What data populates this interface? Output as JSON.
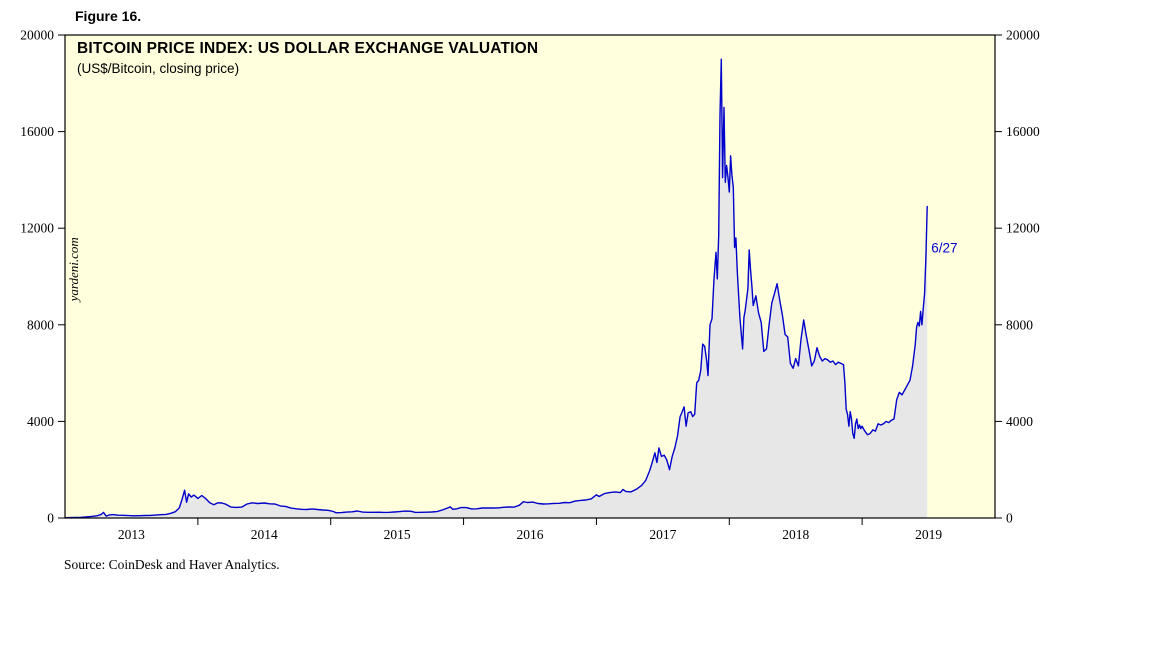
{
  "figure_label": "Figure 16.",
  "source": "Source: CoinDesk and Haver Analytics.",
  "chart_data": {
    "type": "line",
    "title": "BITCOIN PRICE INDEX: US DOLLAR EXCHANGE VALUATION",
    "subtitle": "(US$/Bitcoin, closing price)",
    "watermark": "yardeni.com",
    "annotation": {
      "label": "6/27",
      "x": 2019.52,
      "y": 11000
    },
    "xlim": [
      2013,
      2020
    ],
    "ylim": [
      0,
      20000
    ],
    "grid": false,
    "yticks": [
      0,
      4000,
      8000,
      12000,
      16000,
      20000
    ],
    "xticks": [
      {
        "label": "2013",
        "x": 2013.5
      },
      {
        "label": "2014",
        "x": 2014.5
      },
      {
        "label": "2015",
        "x": 2015.5
      },
      {
        "label": "2016",
        "x": 2016.5
      },
      {
        "label": "2017",
        "x": 2017.5
      },
      {
        "label": "2018",
        "x": 2018.5
      },
      {
        "label": "2019",
        "x": 2019.5
      }
    ],
    "xtick_boundaries": [
      2014,
      2015,
      2016,
      2017,
      2018,
      2019
    ],
    "colors": {
      "line": "#0000CC",
      "area_fill": "#E7E7E7",
      "plot_bg": "#FFFFDE",
      "axis": "#000000",
      "annotation": "#0000CC"
    },
    "series": [
      {
        "name": "Bitcoin price (US$/Bitcoin, closing price)",
        "points": [
          [
            2013.0,
            13
          ],
          [
            2013.04,
            15
          ],
          [
            2013.08,
            20
          ],
          [
            2013.12,
            30
          ],
          [
            2013.16,
            47
          ],
          [
            2013.2,
            65
          ],
          [
            2013.24,
            90
          ],
          [
            2013.27,
            140
          ],
          [
            2013.29,
            230
          ],
          [
            2013.31,
            77
          ],
          [
            2013.33,
            120
          ],
          [
            2013.36,
            140
          ],
          [
            2013.4,
            117
          ],
          [
            2013.44,
            110
          ],
          [
            2013.48,
            100
          ],
          [
            2013.52,
            90
          ],
          [
            2013.56,
            97
          ],
          [
            2013.6,
            105
          ],
          [
            2013.64,
            108
          ],
          [
            2013.68,
            120
          ],
          [
            2013.72,
            135
          ],
          [
            2013.76,
            150
          ],
          [
            2013.8,
            200
          ],
          [
            2013.83,
            260
          ],
          [
            2013.86,
            420
          ],
          [
            2013.88,
            750
          ],
          [
            2013.9,
            1150
          ],
          [
            2013.915,
            650
          ],
          [
            2013.93,
            1000
          ],
          [
            2013.95,
            870
          ],
          [
            2013.97,
            950
          ],
          [
            2014.0,
            810
          ],
          [
            2014.03,
            930
          ],
          [
            2014.06,
            800
          ],
          [
            2014.09,
            630
          ],
          [
            2014.12,
            550
          ],
          [
            2014.15,
            630
          ],
          [
            2014.18,
            620
          ],
          [
            2014.21,
            570
          ],
          [
            2014.25,
            450
          ],
          [
            2014.29,
            440
          ],
          [
            2014.33,
            450
          ],
          [
            2014.37,
            580
          ],
          [
            2014.41,
            630
          ],
          [
            2014.45,
            600
          ],
          [
            2014.5,
            620
          ],
          [
            2014.54,
            590
          ],
          [
            2014.58,
            580
          ],
          [
            2014.62,
            500
          ],
          [
            2014.66,
            480
          ],
          [
            2014.7,
            410
          ],
          [
            2014.74,
            380
          ],
          [
            2014.78,
            360
          ],
          [
            2014.82,
            350
          ],
          [
            2014.86,
            375
          ],
          [
            2014.9,
            350
          ],
          [
            2014.94,
            330
          ],
          [
            2014.98,
            320
          ],
          [
            2015.02,
            270
          ],
          [
            2015.04,
            215
          ],
          [
            2015.08,
            225
          ],
          [
            2015.12,
            245
          ],
          [
            2015.16,
            255
          ],
          [
            2015.2,
            290
          ],
          [
            2015.24,
            245
          ],
          [
            2015.28,
            235
          ],
          [
            2015.32,
            235
          ],
          [
            2015.36,
            240
          ],
          [
            2015.4,
            230
          ],
          [
            2015.44,
            235
          ],
          [
            2015.48,
            250
          ],
          [
            2015.52,
            265
          ],
          [
            2015.56,
            285
          ],
          [
            2015.6,
            280
          ],
          [
            2015.64,
            230
          ],
          [
            2015.68,
            235
          ],
          [
            2015.72,
            240
          ],
          [
            2015.76,
            250
          ],
          [
            2015.8,
            265
          ],
          [
            2015.84,
            330
          ],
          [
            2015.87,
            395
          ],
          [
            2015.9,
            460
          ],
          [
            2015.92,
            360
          ],
          [
            2015.95,
            380
          ],
          [
            2015.98,
            430
          ],
          [
            2016.02,
            430
          ],
          [
            2016.06,
            375
          ],
          [
            2016.1,
            380
          ],
          [
            2016.14,
            415
          ],
          [
            2016.18,
            420
          ],
          [
            2016.22,
            415
          ],
          [
            2016.26,
            420
          ],
          [
            2016.3,
            445
          ],
          [
            2016.34,
            455
          ],
          [
            2016.38,
            450
          ],
          [
            2016.42,
            530
          ],
          [
            2016.45,
            675
          ],
          [
            2016.48,
            640
          ],
          [
            2016.52,
            660
          ],
          [
            2016.56,
            600
          ],
          [
            2016.6,
            580
          ],
          [
            2016.64,
            590
          ],
          [
            2016.68,
            605
          ],
          [
            2016.72,
            610
          ],
          [
            2016.76,
            640
          ],
          [
            2016.8,
            635
          ],
          [
            2016.84,
            700
          ],
          [
            2016.88,
            730
          ],
          [
            2016.92,
            745
          ],
          [
            2016.96,
            790
          ],
          [
            2017.0,
            960
          ],
          [
            2017.02,
            890
          ],
          [
            2017.06,
            1010
          ],
          [
            2017.1,
            1050
          ],
          [
            2017.14,
            1080
          ],
          [
            2017.18,
            1050
          ],
          [
            2017.2,
            1180
          ],
          [
            2017.22,
            1100
          ],
          [
            2017.26,
            1080
          ],
          [
            2017.3,
            1190
          ],
          [
            2017.34,
            1350
          ],
          [
            2017.37,
            1550
          ],
          [
            2017.4,
            1950
          ],
          [
            2017.42,
            2300
          ],
          [
            2017.44,
            2700
          ],
          [
            2017.455,
            2300
          ],
          [
            2017.47,
            2900
          ],
          [
            2017.49,
            2550
          ],
          [
            2017.51,
            2600
          ],
          [
            2017.53,
            2400
          ],
          [
            2017.55,
            2000
          ],
          [
            2017.57,
            2550
          ],
          [
            2017.59,
            2900
          ],
          [
            2017.61,
            3400
          ],
          [
            2017.63,
            4200
          ],
          [
            2017.645,
            4390
          ],
          [
            2017.66,
            4600
          ],
          [
            2017.675,
            3800
          ],
          [
            2017.69,
            4350
          ],
          [
            2017.71,
            4400
          ],
          [
            2017.725,
            4200
          ],
          [
            2017.74,
            4300
          ],
          [
            2017.755,
            5600
          ],
          [
            2017.77,
            5700
          ],
          [
            2017.785,
            6100
          ],
          [
            2017.8,
            7200
          ],
          [
            2017.815,
            7100
          ],
          [
            2017.83,
            6500
          ],
          [
            2017.84,
            5900
          ],
          [
            2017.855,
            8000
          ],
          [
            2017.87,
            8250
          ],
          [
            2017.885,
            9900
          ],
          [
            2017.9,
            11000
          ],
          [
            2017.91,
            9900
          ],
          [
            2017.92,
            11700
          ],
          [
            2017.93,
            16700
          ],
          [
            2017.94,
            19000
          ],
          [
            2017.95,
            14100
          ],
          [
            2017.96,
            17000
          ],
          [
            2017.97,
            13900
          ],
          [
            2017.98,
            14600
          ],
          [
            2017.99,
            14100
          ],
          [
            2018.0,
            13500
          ],
          [
            2018.01,
            15000
          ],
          [
            2018.02,
            14200
          ],
          [
            2018.03,
            13700
          ],
          [
            2018.04,
            11200
          ],
          [
            2018.05,
            11600
          ],
          [
            2018.06,
            10200
          ],
          [
            2018.08,
            8300
          ],
          [
            2018.1,
            7000
          ],
          [
            2018.11,
            8300
          ],
          [
            2018.12,
            8600
          ],
          [
            2018.14,
            9500
          ],
          [
            2018.15,
            11100
          ],
          [
            2018.16,
            10300
          ],
          [
            2018.17,
            9600
          ],
          [
            2018.18,
            8800
          ],
          [
            2018.2,
            9200
          ],
          [
            2018.22,
            8500
          ],
          [
            2018.24,
            8100
          ],
          [
            2018.26,
            6900
          ],
          [
            2018.28,
            7000
          ],
          [
            2018.3,
            8000
          ],
          [
            2018.32,
            8900
          ],
          [
            2018.34,
            9300
          ],
          [
            2018.36,
            9700
          ],
          [
            2018.38,
            9000
          ],
          [
            2018.4,
            8400
          ],
          [
            2018.42,
            7600
          ],
          [
            2018.44,
            7500
          ],
          [
            2018.46,
            6400
          ],
          [
            2018.48,
            6200
          ],
          [
            2018.5,
            6600
          ],
          [
            2018.52,
            6300
          ],
          [
            2018.54,
            7400
          ],
          [
            2018.56,
            8200
          ],
          [
            2018.58,
            7550
          ],
          [
            2018.6,
            6950
          ],
          [
            2018.62,
            6300
          ],
          [
            2018.64,
            6500
          ],
          [
            2018.66,
            7050
          ],
          [
            2018.68,
            6700
          ],
          [
            2018.7,
            6500
          ],
          [
            2018.72,
            6600
          ],
          [
            2018.74,
            6550
          ],
          [
            2018.76,
            6450
          ],
          [
            2018.78,
            6500
          ],
          [
            2018.8,
            6350
          ],
          [
            2018.82,
            6450
          ],
          [
            2018.84,
            6400
          ],
          [
            2018.86,
            6350
          ],
          [
            2018.87,
            5600
          ],
          [
            2018.88,
            4500
          ],
          [
            2018.89,
            4300
          ],
          [
            2018.9,
            3800
          ],
          [
            2018.91,
            4400
          ],
          [
            2018.92,
            4100
          ],
          [
            2018.93,
            3500
          ],
          [
            2018.94,
            3300
          ],
          [
            2018.95,
            3900
          ],
          [
            2018.96,
            4100
          ],
          [
            2018.97,
            3700
          ],
          [
            2018.98,
            3850
          ],
          [
            2018.99,
            3700
          ],
          [
            2019.0,
            3800
          ],
          [
            2019.02,
            3600
          ],
          [
            2019.04,
            3450
          ],
          [
            2019.06,
            3500
          ],
          [
            2019.08,
            3650
          ],
          [
            2019.1,
            3600
          ],
          [
            2019.12,
            3900
          ],
          [
            2019.14,
            3850
          ],
          [
            2019.16,
            3900
          ],
          [
            2019.18,
            4000
          ],
          [
            2019.2,
            3950
          ],
          [
            2019.22,
            4050
          ],
          [
            2019.24,
            4100
          ],
          [
            2019.26,
            4900
          ],
          [
            2019.28,
            5200
          ],
          [
            2019.3,
            5100
          ],
          [
            2019.32,
            5300
          ],
          [
            2019.34,
            5500
          ],
          [
            2019.36,
            5700
          ],
          [
            2019.38,
            6300
          ],
          [
            2019.4,
            7200
          ],
          [
            2019.41,
            7900
          ],
          [
            2019.42,
            8100
          ],
          [
            2019.43,
            7950
          ],
          [
            2019.44,
            8550
          ],
          [
            2019.45,
            8000
          ],
          [
            2019.46,
            8700
          ],
          [
            2019.47,
            9300
          ],
          [
            2019.48,
            10800
          ],
          [
            2019.49,
            12900
          ]
        ]
      }
    ]
  }
}
